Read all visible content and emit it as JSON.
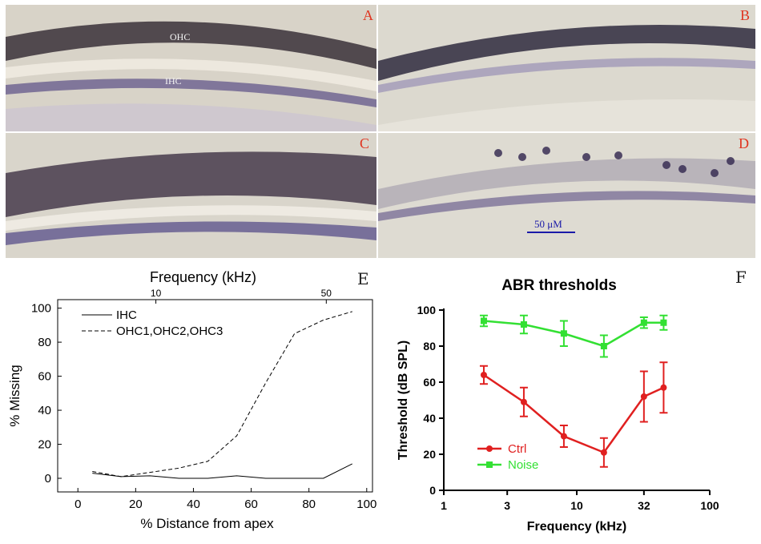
{
  "panels": {
    "A": {
      "letter": "A",
      "labels": [
        "OHC",
        "IHC"
      ]
    },
    "B": {
      "letter": "B"
    },
    "C": {
      "letter": "C"
    },
    "D": {
      "letter": "D",
      "scale_bar_label": "50 μM"
    },
    "E": {
      "letter": "E"
    },
    "F": {
      "letter": "F"
    }
  },
  "colors": {
    "ctrl": "#e02020",
    "noise": "#33e033",
    "micrograph_bg": "#d8d4cc",
    "cell_stain": "#3a2f55",
    "scale_bar": "#1a1aa8"
  },
  "chart_data": [
    {
      "panel": "E",
      "type": "line",
      "top_axis_label": "Frequency (kHz)",
      "top_ticks": [
        "10",
        "50"
      ],
      "top_ticks_at_x": [
        27,
        86
      ],
      "xlabel": "% Distance from apex",
      "ylabel": "% Missing",
      "xlim": [
        -7,
        102
      ],
      "ylim": [
        -8,
        105
      ],
      "xticks": [
        0,
        20,
        40,
        60,
        80,
        100
      ],
      "yticks": [
        0,
        20,
        40,
        60,
        80,
        100
      ],
      "series": [
        {
          "name": "IHC",
          "style": "solid",
          "x": [
            5,
            15,
            25,
            35,
            45,
            55,
            65,
            75,
            85,
            95
          ],
          "y": [
            3,
            1,
            1.5,
            0,
            0,
            1.5,
            0,
            0,
            0,
            8.5
          ]
        },
        {
          "name": "OHC1,OHC2,OHC3",
          "style": "dashed",
          "x": [
            5,
            15,
            25,
            35,
            45,
            55,
            65,
            75,
            85,
            95
          ],
          "y": [
            4,
            1,
            3.5,
            6,
            10,
            25,
            56,
            85,
            93,
            98
          ]
        }
      ],
      "legend": "top-left"
    },
    {
      "panel": "F",
      "type": "line",
      "title": "ABR thresholds",
      "xlabel": "Frequency (kHz)",
      "ylabel": "Threshold (dB SPL)",
      "xscale": "log",
      "xlim": [
        1,
        100
      ],
      "ylim": [
        0,
        100
      ],
      "xticks": [
        1,
        3,
        10,
        32,
        100
      ],
      "yticks": [
        0,
        20,
        40,
        60,
        80,
        100
      ],
      "series": [
        {
          "name": "Ctrl",
          "color": "#e02020",
          "x": [
            2,
            4,
            8,
            16,
            32,
            45
          ],
          "y": [
            64,
            49,
            30,
            21,
            52,
            57
          ],
          "error": [
            5,
            8,
            6,
            8,
            14,
            14
          ]
        },
        {
          "name": "Noise",
          "color": "#33e033",
          "x": [
            2,
            4,
            8,
            16,
            32,
            45
          ],
          "y": [
            94,
            92,
            87,
            80,
            93,
            93
          ],
          "error": [
            3,
            5,
            7,
            6,
            3,
            4
          ]
        }
      ],
      "legend": "bottom-left"
    }
  ]
}
